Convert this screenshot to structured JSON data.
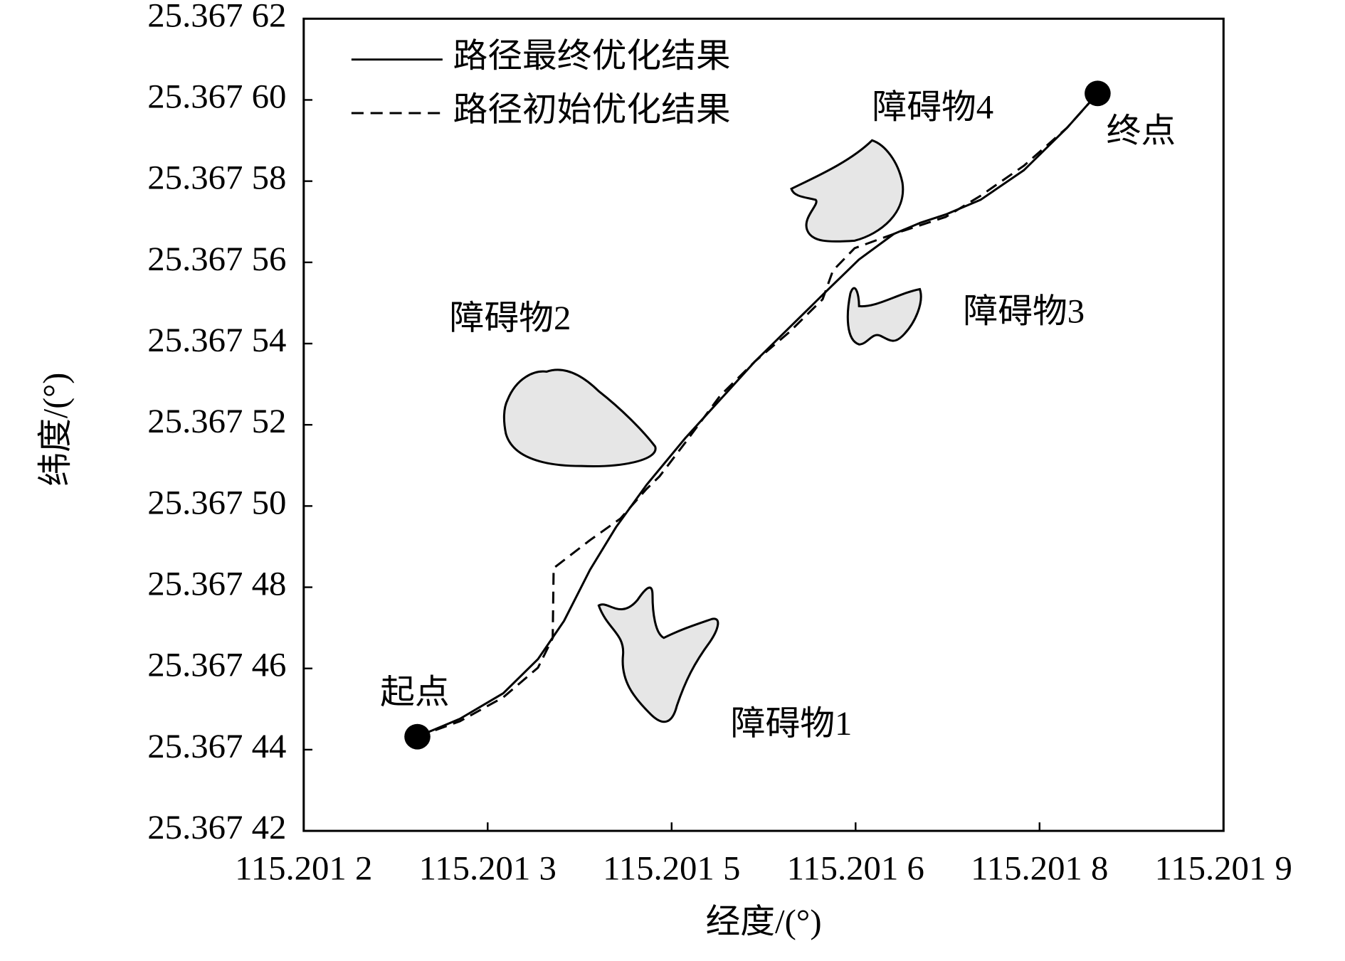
{
  "chart_data": {
    "type": "line",
    "xlabel": "经度/(°)",
    "ylabel": "纬度/(°)",
    "xlim": [
      115.2012,
      115.2019
    ],
    "ylim": [
      25.36742,
      25.36762
    ],
    "xticks": [
      {
        "value": 115.2012,
        "label": "115.201 2"
      },
      {
        "value": 115.20134,
        "label": "115.201 3"
      },
      {
        "value": 115.20148,
        "label": "115.201 5"
      },
      {
        "value": 115.20162,
        "label": "115.201 6"
      },
      {
        "value": 115.20176,
        "label": "115.201 8"
      },
      {
        "value": 115.2019,
        "label": "115.201 9"
      }
    ],
    "yticks": [
      {
        "value": 25.36742,
        "label": "25.367 42"
      },
      {
        "value": 25.36744,
        "label": "25.367 44"
      },
      {
        "value": 25.36746,
        "label": "25.367 46"
      },
      {
        "value": 25.36748,
        "label": "25.367 48"
      },
      {
        "value": 25.3675,
        "label": "25.367 50"
      },
      {
        "value": 25.36752,
        "label": "25.367 52"
      },
      {
        "value": 25.36754,
        "label": "25.367 54"
      },
      {
        "value": 25.36756,
        "label": "25.367 56"
      },
      {
        "value": 25.36758,
        "label": "25.367 58"
      },
      {
        "value": 25.3676,
        "label": "25.367 60"
      },
      {
        "value": 25.36762,
        "label": "25.367 62"
      }
    ],
    "series": [
      {
        "name": "路径最终优化结果",
        "color": "#000000",
        "dashed": false,
        "x": [
          115.2012865,
          115.2013189,
          115.2013519,
          115.2013783,
          115.2013981,
          115.2014179,
          115.2014377,
          115.2014609,
          115.2014906,
          115.201517,
          115.2015434,
          115.2015698,
          115.2015962,
          115.2016226,
          115.2016491,
          115.2016689,
          115.2016887,
          115.2017151,
          115.2017481,
          115.2017811,
          115.2018042
        ],
        "y": [
          25.3674432,
          25.3674476,
          25.3674539,
          25.3674623,
          25.3674717,
          25.3674843,
          25.3674948,
          25.3675052,
          25.3675168,
          25.3675262,
          25.3675356,
          25.367544,
          25.3675524,
          25.3675607,
          25.367567,
          25.3675697,
          25.3675718,
          25.3675754,
          25.3675827,
          25.3675932,
          25.3676016
        ]
      },
      {
        "name": "路径初始优化结果",
        "color": "#000000",
        "dashed": true,
        "x": [
          115.2012865,
          115.2013189,
          115.2013519,
          115.2013783,
          115.2013895,
          115.2013902,
          115.2014179,
          115.201441,
          115.2014609,
          115.2014708,
          115.2014906,
          115.201517,
          115.2015434,
          115.2015698,
          115.2015949,
          115.2016028,
          115.2016193,
          115.2016491,
          115.2016887,
          115.2017151,
          115.2017481,
          115.2017811,
          115.2018042
        ],
        "y": [
          25.3674432,
          25.367447,
          25.3674529,
          25.3674602,
          25.3674675,
          25.3674847,
          25.3674916,
          25.3674969,
          25.3675042,
          25.3675073,
          25.3675157,
          25.3675272,
          25.3675356,
          25.3675429,
          25.3675509,
          25.367558,
          25.3675635,
          25.367567,
          25.3675712,
          25.3675764,
          25.3675838,
          25.3675932,
          25.3676016
        ]
      }
    ],
    "points": {
      "x": [
        115.2012865,
        115.2018042
      ],
      "y": [
        25.3674432,
        25.3676016
      ],
      "labels": [
        "起点",
        "终点"
      ],
      "color": "#000000"
    },
    "annotations": [
      "障碍物1",
      "障碍物2",
      "障碍物3",
      "障碍物4"
    ]
  }
}
